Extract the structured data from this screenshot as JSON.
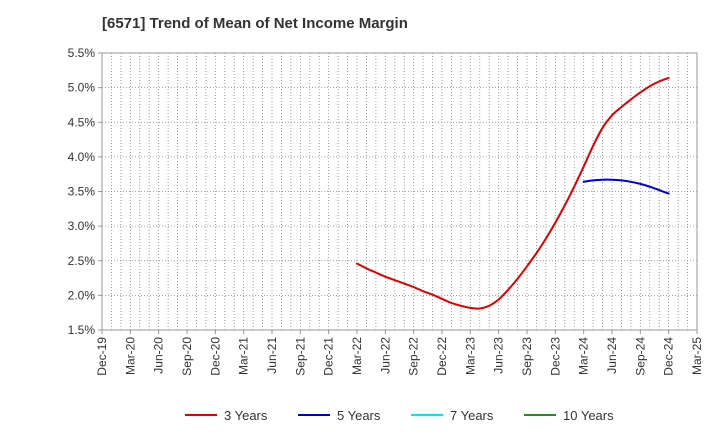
{
  "chart_data": {
    "type": "line",
    "title": "[6571]  Trend of Mean of Net Income Margin",
    "xlabel": "",
    "ylabel": "",
    "x_tick_labels": [
      "Dec-19",
      "Mar-20",
      "Jun-20",
      "Sep-20",
      "Dec-20",
      "Mar-21",
      "Jun-21",
      "Sep-21",
      "Dec-21",
      "Mar-22",
      "Jun-22",
      "Sep-22",
      "Dec-22",
      "Mar-23",
      "Jun-23",
      "Sep-23",
      "Dec-23",
      "Mar-24",
      "Jun-24",
      "Sep-24",
      "Dec-24",
      "Mar-25"
    ],
    "y_tick_labels": [
      "1.5%",
      "2.0%",
      "2.5%",
      "3.0%",
      "3.5%",
      "4.0%",
      "4.5%",
      "5.0%",
      "5.5%"
    ],
    "ylim": [
      1.5,
      5.5
    ],
    "y_unit": "%",
    "grid": true,
    "legend_position": "bottom",
    "series": [
      {
        "name": "3 Years",
        "color": "#dd0000",
        "points": [
          [
            "Mar-22",
            2.46
          ],
          [
            "Apr-22",
            2.39
          ],
          [
            "May-22",
            2.33
          ],
          [
            "Jun-22",
            2.27
          ],
          [
            "Jul-22",
            2.22
          ],
          [
            "Aug-22",
            2.17
          ],
          [
            "Sep-22",
            2.12
          ],
          [
            "Oct-22",
            2.06
          ],
          [
            "Nov-22",
            2.01
          ],
          [
            "Dec-22",
            1.95
          ],
          [
            "Jan-23",
            1.89
          ],
          [
            "Feb-23",
            1.85
          ],
          [
            "Mar-23",
            1.82
          ],
          [
            "Apr-23",
            1.81
          ],
          [
            "May-23",
            1.85
          ],
          [
            "Jun-23",
            1.94
          ],
          [
            "Jul-23",
            2.08
          ],
          [
            "Aug-23",
            2.24
          ],
          [
            "Sep-23",
            2.42
          ],
          [
            "Oct-23",
            2.61
          ],
          [
            "Nov-23",
            2.82
          ],
          [
            "Dec-23",
            3.05
          ],
          [
            "Jan-24",
            3.3
          ],
          [
            "Feb-24",
            3.57
          ],
          [
            "Mar-24",
            3.86
          ],
          [
            "Apr-24",
            4.16
          ],
          [
            "May-24",
            4.42
          ],
          [
            "Jun-24",
            4.6
          ],
          [
            "Jul-24",
            4.72
          ],
          [
            "Aug-24",
            4.83
          ],
          [
            "Sep-24",
            4.93
          ],
          [
            "Oct-24",
            5.02
          ],
          [
            "Nov-24",
            5.09
          ],
          [
            "Dec-24",
            5.14
          ]
        ]
      },
      {
        "name": "5 Years",
        "color": "#0000cc",
        "points": [
          [
            "Mar-24",
            3.64
          ],
          [
            "Apr-24",
            3.66
          ],
          [
            "May-24",
            3.67
          ],
          [
            "Jun-24",
            3.67
          ],
          [
            "Jul-24",
            3.66
          ],
          [
            "Aug-24",
            3.64
          ],
          [
            "Sep-24",
            3.61
          ],
          [
            "Oct-24",
            3.57
          ],
          [
            "Nov-24",
            3.52
          ],
          [
            "Dec-24",
            3.47
          ]
        ]
      },
      {
        "name": "7 Years",
        "color": "#00e5ee",
        "points": []
      },
      {
        "name": "10 Years",
        "color": "#228b22",
        "points": []
      }
    ]
  }
}
